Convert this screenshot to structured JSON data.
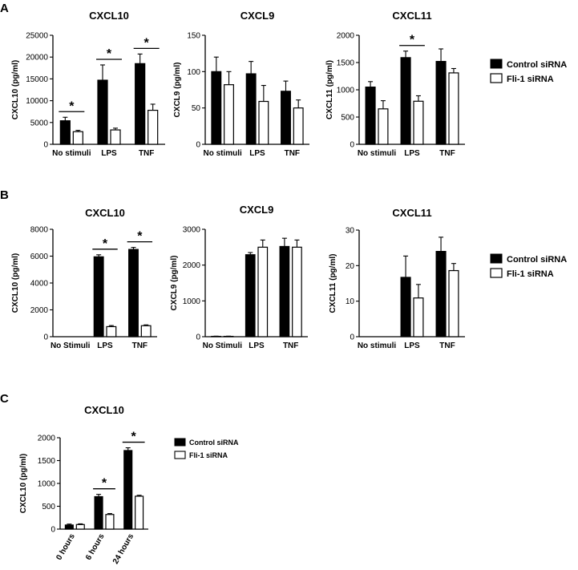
{
  "panels": [
    "A",
    "B",
    "C"
  ],
  "legend": {
    "A": {
      "control": "Control siRNA",
      "fli1": "Fli-1 siRNA"
    },
    "B": {
      "control": "Control siRNA",
      "fli1": "Fli-1 siRNA"
    },
    "C": {
      "control": "Control siRNA",
      "fli1": "Fli-1 siRNA"
    }
  },
  "colors": {
    "control": "#000000",
    "fli1": "#ffffff",
    "stroke": "#000000"
  },
  "chart_data": [
    {
      "type": "bar",
      "panel": "A",
      "title": "CXCL10",
      "ylabel": "CXCL10 (pg/ml)",
      "categories": [
        "No stimuli",
        "LPS",
        "TNF"
      ],
      "ylim": [
        0,
        25000
      ],
      "yticks": [
        0,
        5000,
        10000,
        15000,
        20000,
        25000
      ],
      "series": [
        {
          "name": "Control siRNA",
          "values": [
            5400,
            14700,
            18500
          ],
          "errors": [
            800,
            3500,
            2200
          ]
        },
        {
          "name": "Fli-1 siRNA",
          "values": [
            2900,
            3300,
            7800
          ],
          "errors": [
            300,
            400,
            1400
          ]
        }
      ],
      "significance": [
        0,
        1,
        2
      ]
    },
    {
      "type": "bar",
      "panel": "A",
      "title": "CXCL9",
      "ylabel": "CXCL9 (pg/ml)",
      "categories": [
        "No stimuli",
        "LPS",
        "TNF"
      ],
      "ylim": [
        0,
        150
      ],
      "yticks": [
        0,
        50,
        100,
        150
      ],
      "series": [
        {
          "name": "Control siRNA",
          "values": [
            100,
            97,
            73
          ],
          "errors": [
            20,
            17,
            14
          ]
        },
        {
          "name": "Fli-1 siRNA",
          "values": [
            82,
            59,
            50
          ],
          "errors": [
            18,
            22,
            11
          ]
        }
      ],
      "significance": []
    },
    {
      "type": "bar",
      "panel": "A",
      "title": "CXCL11",
      "ylabel": "CXCL11 (pg/ml)",
      "categories": [
        "No stimuli",
        "LPS",
        "TNF"
      ],
      "ylim": [
        0,
        2000
      ],
      "yticks": [
        0,
        500,
        1000,
        1500,
        2000
      ],
      "series": [
        {
          "name": "Control siRNA",
          "values": [
            1050,
            1590,
            1520
          ],
          "errors": [
            100,
            120,
            230
          ]
        },
        {
          "name": "Fli-1 siRNA",
          "values": [
            650,
            790,
            1310
          ],
          "errors": [
            150,
            100,
            80
          ]
        }
      ],
      "significance": [
        1
      ]
    },
    {
      "type": "bar",
      "panel": "B",
      "title": "CXCL10",
      "ylabel": "CXCL10  (pg/ml)",
      "categories": [
        "No Stimuli",
        "LPS",
        "TNF"
      ],
      "ylim": [
        0,
        8000
      ],
      "yticks": [
        0,
        2000,
        4000,
        6000,
        8000
      ],
      "series": [
        {
          "name": "Control siRNA",
          "values": [
            0,
            5950,
            6500
          ],
          "errors": [
            0,
            150,
            150
          ]
        },
        {
          "name": "Fli-1 siRNA",
          "values": [
            0,
            750,
            820
          ],
          "errors": [
            0,
            80,
            60
          ]
        }
      ],
      "significance": [
        1,
        2
      ]
    },
    {
      "type": "bar",
      "panel": "B",
      "title": "CXCL9",
      "ylabel": "CXCL9  (pg/ml)",
      "categories": [
        "No Stimuli",
        "LPS",
        "TNF"
      ],
      "ylim": [
        0,
        3000
      ],
      "yticks": [
        0,
        1000,
        2000,
        3000
      ],
      "series": [
        {
          "name": "Control siRNA",
          "values": [
            10,
            2290,
            2520
          ],
          "errors": [
            5,
            60,
            230
          ]
        },
        {
          "name": "Fli-1 siRNA",
          "values": [
            10,
            2500,
            2500
          ],
          "errors": [
            5,
            200,
            200
          ]
        }
      ],
      "significance": []
    },
    {
      "type": "bar",
      "panel": "B",
      "title": "CXCL11",
      "ylabel": "CXCL11 (pg/ml)",
      "categories": [
        "No stimuli",
        "LPS",
        "TNF"
      ],
      "ylim": [
        0,
        30
      ],
      "yticks": [
        0,
        10,
        20,
        30
      ],
      "series": [
        {
          "name": "Control siRNA",
          "values": [
            0,
            16.7,
            24
          ],
          "errors": [
            0,
            6,
            4
          ]
        },
        {
          "name": "Fli-1 siRNA",
          "values": [
            0,
            10.9,
            18.6
          ],
          "errors": [
            0,
            3.8,
            2
          ]
        }
      ],
      "significance": []
    },
    {
      "type": "bar",
      "panel": "C",
      "title": "CXCL10",
      "ylabel": "CXCL10 (pg/ml)",
      "categories": [
        "0 hours",
        "6 hours",
        "24 hours"
      ],
      "ylim": [
        0,
        2000
      ],
      "yticks": [
        0,
        500,
        1000,
        1500,
        2000
      ],
      "series": [
        {
          "name": "Control siRNA",
          "values": [
            90,
            710,
            1720
          ],
          "errors": [
            20,
            50,
            60
          ]
        },
        {
          "name": "Fli-1 siRNA",
          "values": [
            100,
            320,
            720
          ],
          "errors": [
            15,
            20,
            20
          ]
        }
      ],
      "significance": [
        1,
        2
      ]
    }
  ]
}
